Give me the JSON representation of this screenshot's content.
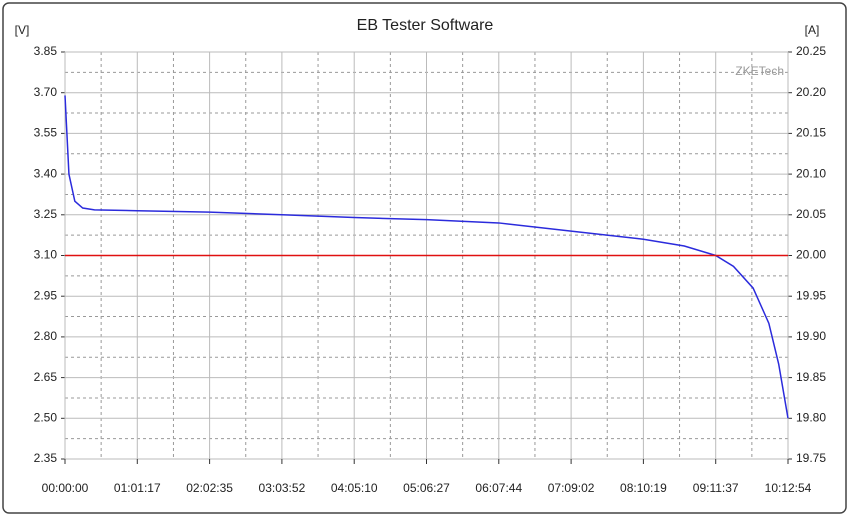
{
  "chart_data": {
    "type": "line",
    "title": "EB Tester Software",
    "y_label": "[V]",
    "y2_label": "[A]",
    "watermark": "ZKETech",
    "xlim": [
      0,
      36774
    ],
    "xticks": [
      {
        "value": 0,
        "label": "00:00:00"
      },
      {
        "value": 3677,
        "label": "01:01:17"
      },
      {
        "value": 7355,
        "label": "02:02:35"
      },
      {
        "value": 11032,
        "label": "03:03:52"
      },
      {
        "value": 14710,
        "label": "04:05:10"
      },
      {
        "value": 18387,
        "label": "05:06:27"
      },
      {
        "value": 22064,
        "label": "06:07:44"
      },
      {
        "value": 25742,
        "label": "07:09:02"
      },
      {
        "value": 29419,
        "label": "08:10:19"
      },
      {
        "value": 33097,
        "label": "09:11:37"
      },
      {
        "value": 36774,
        "label": "10:12:54"
      }
    ],
    "ylim": [
      2.35,
      3.85
    ],
    "yticks": [
      {
        "value": 2.35,
        "label": "2.35"
      },
      {
        "value": 2.5,
        "label": "2.50"
      },
      {
        "value": 2.65,
        "label": "2.65"
      },
      {
        "value": 2.8,
        "label": "2.80"
      },
      {
        "value": 2.95,
        "label": "2.95"
      },
      {
        "value": 3.1,
        "label": "3.10"
      },
      {
        "value": 3.25,
        "label": "3.25"
      },
      {
        "value": 3.4,
        "label": "3.40"
      },
      {
        "value": 3.55,
        "label": "3.55"
      },
      {
        "value": 3.7,
        "label": "3.70"
      },
      {
        "value": 3.85,
        "label": "3.85"
      }
    ],
    "y2lim": [
      19.75,
      20.25
    ],
    "y2ticks": [
      {
        "value": 19.75,
        "label": "19.75"
      },
      {
        "value": 19.8,
        "label": "19.80"
      },
      {
        "value": 19.85,
        "label": "19.85"
      },
      {
        "value": 19.9,
        "label": "19.90"
      },
      {
        "value": 19.95,
        "label": "19.95"
      },
      {
        "value": 20,
        "label": "20.00"
      },
      {
        "value": 20.05,
        "label": "20.05"
      },
      {
        "value": 20.1,
        "label": "20.10"
      },
      {
        "value": 20.15,
        "label": "20.15"
      },
      {
        "value": 20.2,
        "label": "20.20"
      },
      {
        "value": 20.25,
        "label": "20.25"
      }
    ],
    "grid": true,
    "series": [
      {
        "color": "#2b2bdc",
        "x": [
          0,
          200,
          500,
          900,
          1500,
          3677,
          7355,
          11032,
          14710,
          18387,
          22064,
          25742,
          29419,
          31500,
          33097,
          34000,
          35000,
          35800,
          36300,
          36774
        ],
        "values": [
          3.69,
          3.4,
          3.3,
          3.275,
          3.268,
          3.265,
          3.26,
          3.25,
          3.24,
          3.232,
          3.22,
          3.19,
          3.16,
          3.135,
          3.1,
          3.06,
          2.98,
          2.85,
          2.7,
          2.5
        ]
      },
      {
        "color": "#e01010",
        "axis": "y2",
        "x": [
          0,
          36774
        ],
        "values": [
          20,
          20
        ]
      }
    ]
  }
}
